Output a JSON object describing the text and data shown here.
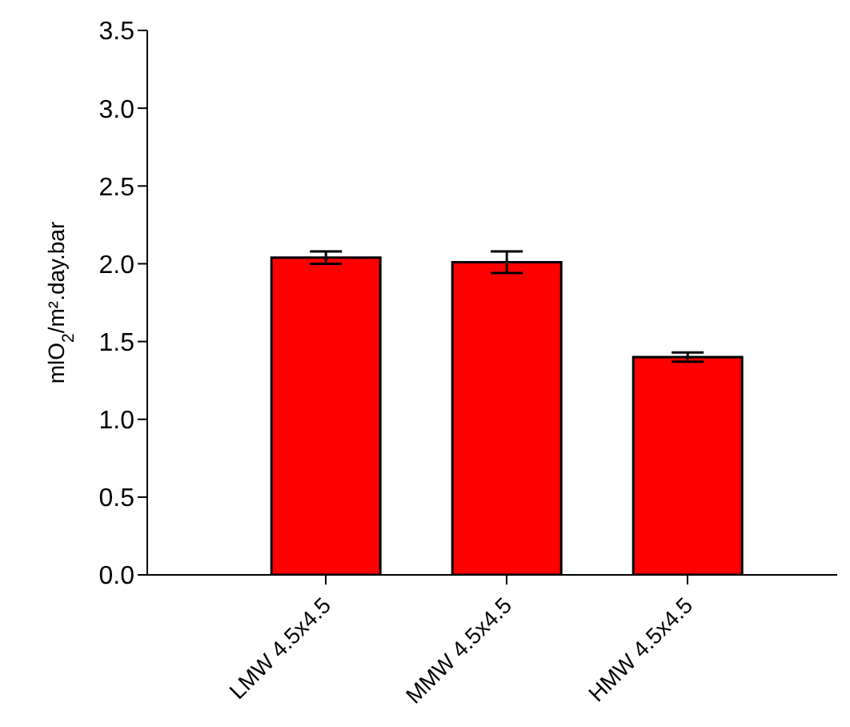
{
  "chart_data": {
    "type": "bar",
    "ylabel": "mlO$_{2}$/m².day.bar",
    "categories": [
      "LMW 4.5x4.5",
      "MMW 4.5x4.5",
      "HMW 4.5x4.5"
    ],
    "values": [
      2.04,
      2.01,
      1.4
    ],
    "errors": [
      0.04,
      0.07,
      0.03
    ],
    "color": "#ff0000",
    "ylim": [
      0,
      3.5
    ],
    "yticks": [
      {
        "value": 0,
        "label": "0.0"
      },
      0.5,
      {
        "value": 1,
        "label": "1.0"
      },
      1.5,
      {
        "value": 2,
        "label": "2.0"
      },
      2.5,
      {
        "value": 3,
        "label": "3.0"
      },
      3.5
    ],
    "grid": false,
    "legend": false
  }
}
